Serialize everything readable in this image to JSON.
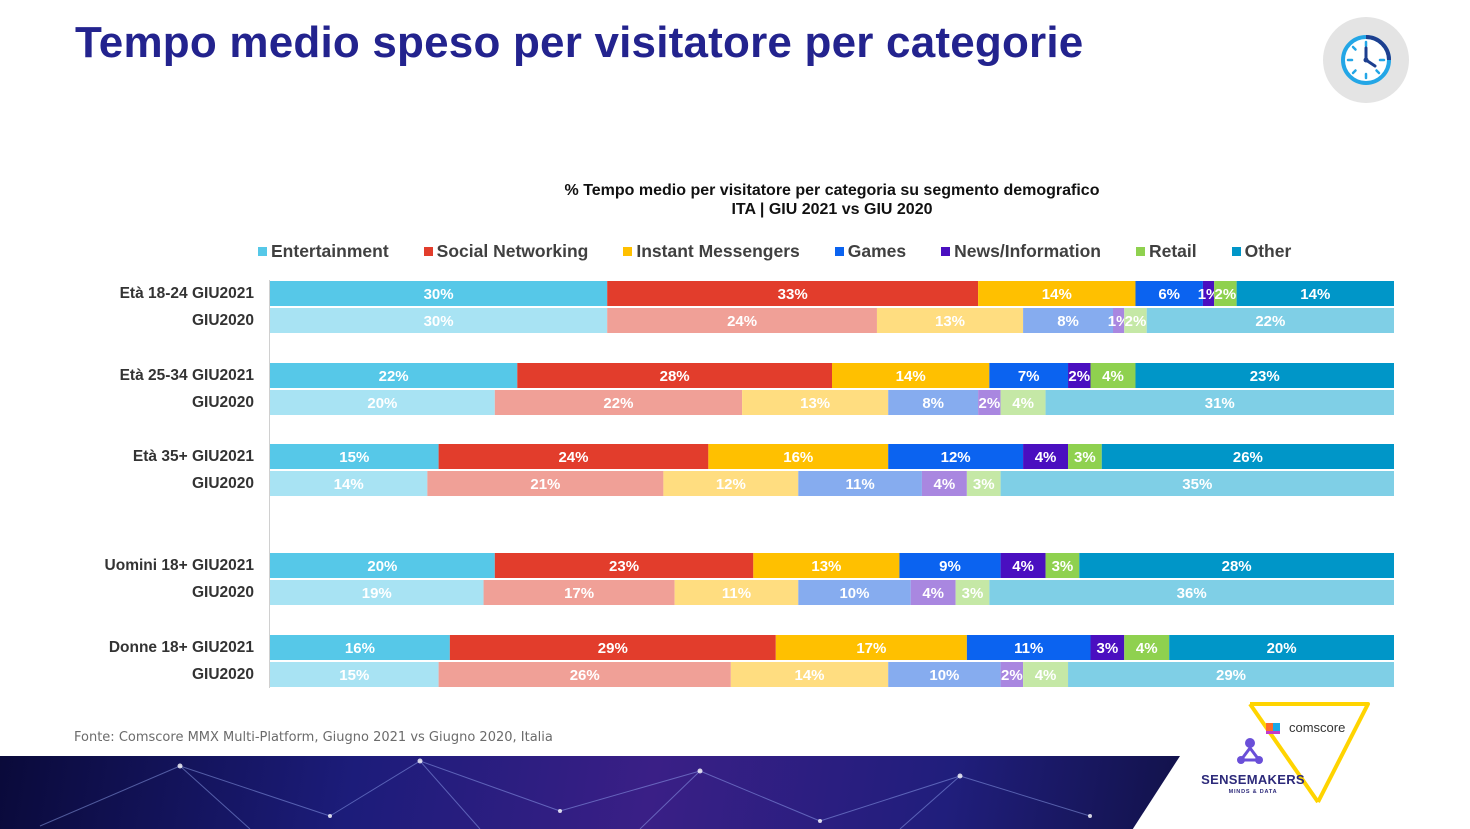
{
  "page": {
    "title": "Tempo medio speso per visitatore per categorie",
    "source": "Fonte: Comscore MMX Multi-Platform, Giugno 2021 vs Giugno 2020, Italia"
  },
  "logos": {
    "comscore": "comscore",
    "sensemakers": "SENSEMAKERS",
    "sensemakers_tagline": "MINDS & DATA"
  },
  "icons": [
    "clock-icon"
  ],
  "chart_data": {
    "type": "bar",
    "orientation": "horizontal",
    "stacked": "100%",
    "title_line1": "%  Tempo medio per visitatore per categoria su segmento demografico",
    "title_line2": "ITA | GIU 2021 vs GIU 2020",
    "legend_position": "top",
    "categories": [
      "Età 18-24 GIU2021",
      "GIU2020",
      "Età 25-34 GIU2021",
      "GIU2020",
      "Età 35+ GIU2021",
      "GIU2020",
      "Uomini 18+ GIU2021",
      "GIU2020",
      "Donne 18+ GIU2021",
      "GIU2020"
    ],
    "series": [
      {
        "name": "Entertainment",
        "color": "#56c8e8",
        "color_prior": "#a8e3f3",
        "values": [
          30,
          30,
          22,
          20,
          15,
          14,
          20,
          19,
          16,
          15
        ]
      },
      {
        "name": "Social Networking",
        "color": "#e23d2c",
        "color_prior": "#f0a097",
        "values": [
          33,
          24,
          28,
          22,
          24,
          21,
          23,
          17,
          29,
          26
        ]
      },
      {
        "name": "Instant Messengers",
        "color": "#ffc000",
        "color_prior": "#ffdd80",
        "values": [
          14,
          13,
          14,
          13,
          16,
          12,
          13,
          11,
          17,
          14
        ]
      },
      {
        "name": "Games",
        "color": "#0b63f0",
        "color_prior": "#86acef",
        "values": [
          6,
          8,
          7,
          8,
          12,
          11,
          9,
          10,
          11,
          10
        ]
      },
      {
        "name": "News/Information",
        "color": "#4a0fc0",
        "color_prior": "#a987e0",
        "values": [
          1,
          1,
          2,
          2,
          4,
          4,
          4,
          4,
          3,
          2
        ]
      },
      {
        "name": "Retail",
        "color": "#8fd14f",
        "color_prior": "#c5e8a6",
        "values": [
          2,
          2,
          4,
          4,
          3,
          3,
          3,
          3,
          4,
          4
        ]
      },
      {
        "name": "Other",
        "color": "#0096c8",
        "color_prior": "#7fcfe6",
        "values": [
          14,
          22,
          23,
          31,
          26,
          35,
          28,
          36,
          20,
          29
        ]
      }
    ]
  }
}
